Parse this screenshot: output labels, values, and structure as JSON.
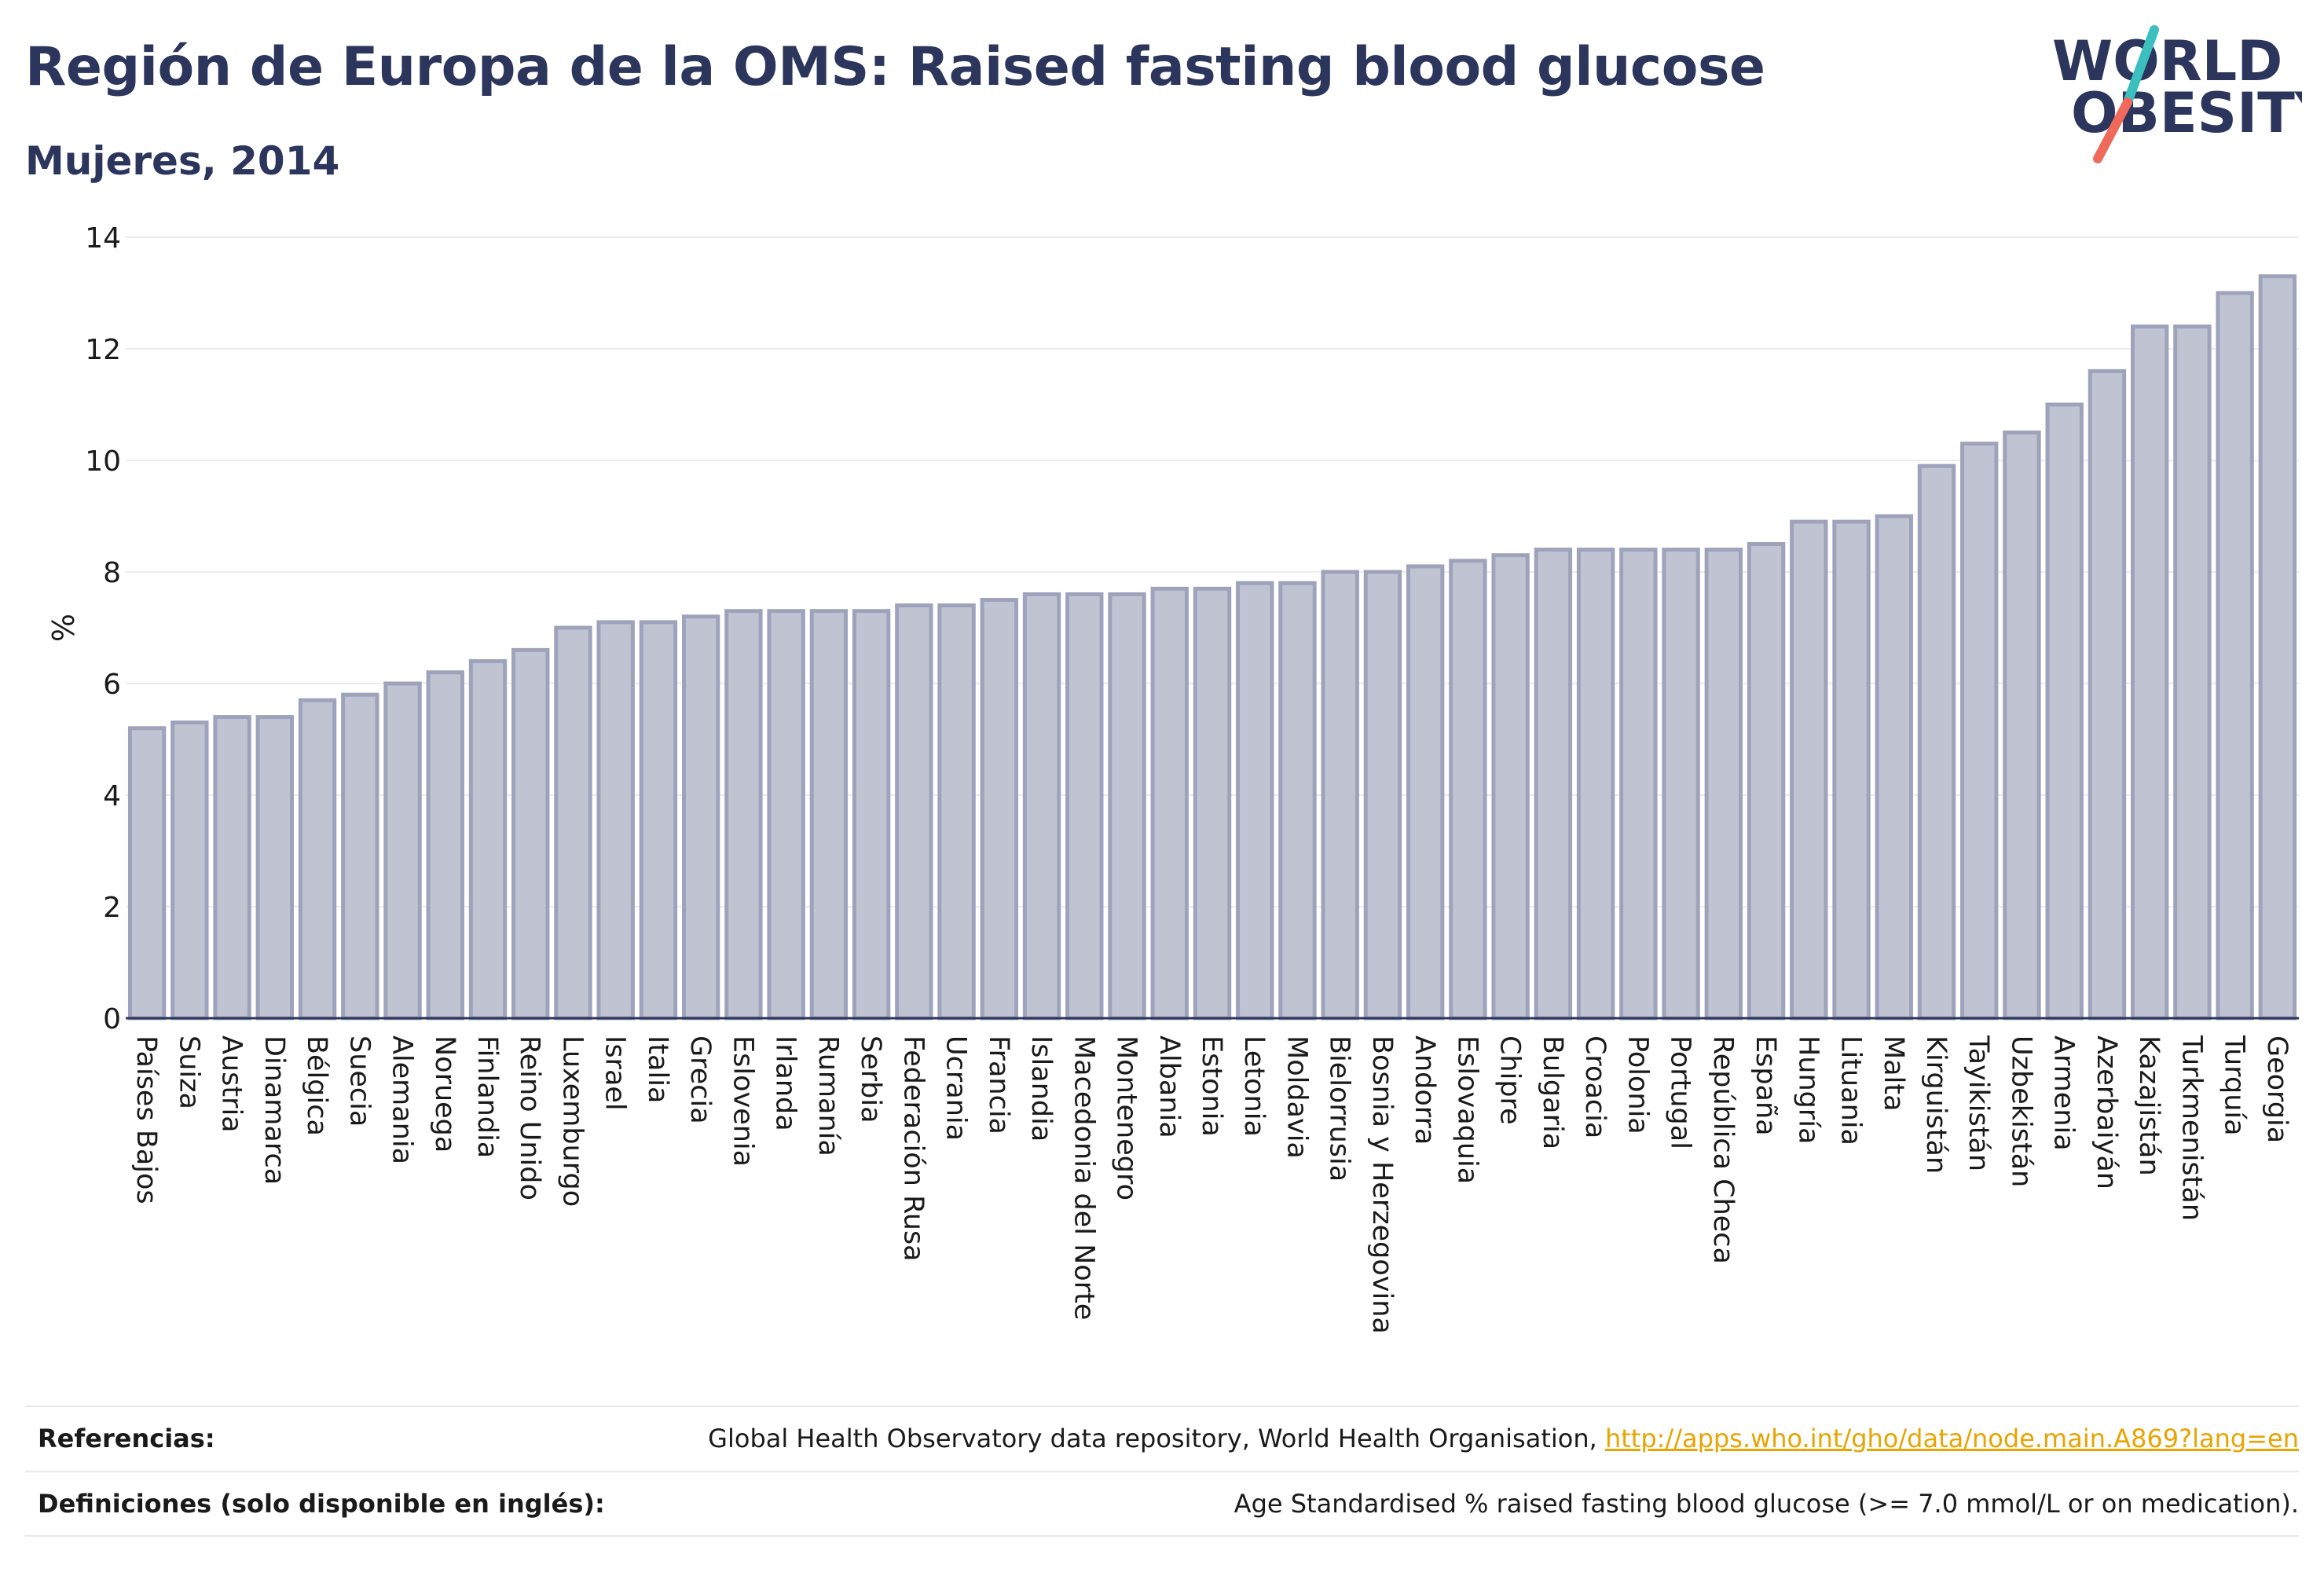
{
  "header": {
    "title": "Región de Europa de la OMS: Raised fasting blood glucose",
    "subtitle": "Mujeres, 2014"
  },
  "logo": {
    "line1": "WORLD",
    "line2": "OBESITY",
    "colors": {
      "text": "#2c355c",
      "slash_top": "#3bbfbf",
      "slash_bottom": "#ef6a5a"
    }
  },
  "colors": {
    "bar_fill": "#c0c4d2",
    "bar_stroke": "#9ea3bb",
    "axis": "#2c355c",
    "grid": "#ebebef",
    "link": "#e8a400"
  },
  "chart_data": {
    "type": "bar",
    "title": "Región de Europa de la OMS: Raised fasting blood glucose",
    "subtitle": "Mujeres, 2014",
    "xlabel": "",
    "ylabel": "%",
    "ylim": [
      0,
      14
    ],
    "yticks": [
      0,
      2,
      4,
      6,
      8,
      10,
      12,
      14
    ],
    "grid": true,
    "categories": [
      "Países Bajos",
      "Suiza",
      "Austria",
      "Dinamarca",
      "Bélgica",
      "Suecia",
      "Alemania",
      "Noruega",
      "Finlandia",
      "Reino Unido",
      "Luxemburgo",
      "Israel",
      "Italia",
      "Grecia",
      "Eslovenia",
      "Irlanda",
      "Rumanía",
      "Serbia",
      "Federación Rusa",
      "Ucrania",
      "Francia",
      "Islandia",
      "Macedonia del Norte",
      "Montenegro",
      "Albania",
      "Estonia",
      "Letonia",
      "Moldavia",
      "Bielorrusia",
      "Bosnia y Herzegovina",
      "Andorra",
      "Eslovaquia",
      "Chipre",
      "Bulgaria",
      "Croacia",
      "Polonia",
      "Portugal",
      "República Checa",
      "España",
      "Hungría",
      "Lituania",
      "Malta",
      "Kirguistán",
      "Tayikistán",
      "Uzbekistán",
      "Armenia",
      "Azerbaiyán",
      "Kazajistán",
      "Turkmenistán",
      "Turquía",
      "Georgia"
    ],
    "values": [
      5.2,
      5.3,
      5.4,
      5.4,
      5.7,
      5.8,
      6.0,
      6.2,
      6.4,
      6.6,
      7.0,
      7.1,
      7.1,
      7.2,
      7.3,
      7.3,
      7.3,
      7.3,
      7.4,
      7.4,
      7.5,
      7.6,
      7.6,
      7.6,
      7.7,
      7.7,
      7.8,
      7.8,
      8.0,
      8.0,
      8.1,
      8.2,
      8.3,
      8.4,
      8.4,
      8.4,
      8.4,
      8.4,
      8.5,
      8.9,
      8.9,
      9.0,
      9.9,
      10.3,
      10.5,
      11.0,
      11.6,
      12.4,
      12.4,
      13.0,
      13.3
    ]
  },
  "footer": {
    "references_label": "Referencias:",
    "references_text": "Global Health Observatory data repository, World Health Organisation, ",
    "references_link": "http://apps.who.int/gho/data/node.main.A869?lang=en",
    "definitions_label": "Definiciones (solo disponible en inglés):",
    "definitions_text": "Age Standardised % raised fasting blood glucose (>= 7.0 mmol/L or on medication)."
  }
}
